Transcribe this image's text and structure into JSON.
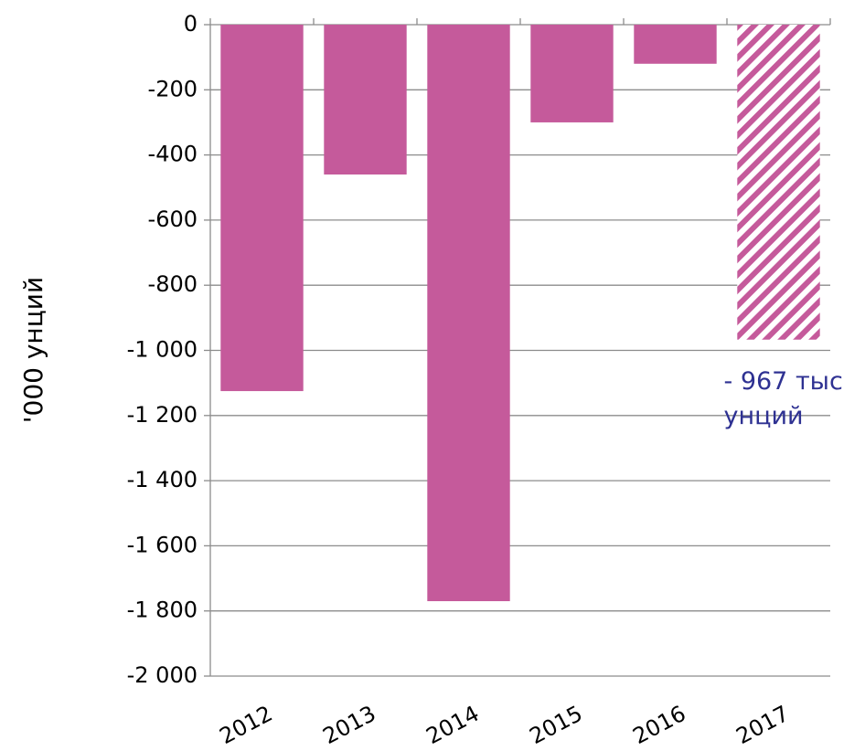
{
  "chart_data": {
    "type": "bar",
    "y_label": "'000  унций",
    "categories": [
      "2012",
      "2013",
      "2014",
      "2015",
      "2016",
      "2017"
    ],
    "values": [
      -1125,
      -460,
      -1770,
      -300,
      -120,
      -967
    ],
    "hatched": [
      false,
      false,
      false,
      false,
      false,
      true
    ],
    "color": "#c55a9b",
    "annotation": [
      "- 967 тыс",
      "унций"
    ],
    "annotation_color": "#2e3192",
    "ylim": [
      -2000,
      0
    ],
    "yticks": [
      0,
      -200,
      -400,
      -600,
      -800,
      {
        "value": -1000,
        "label": "-1 000"
      },
      {
        "value": -1200,
        "label": "-1 200"
      },
      {
        "value": -1400,
        "label": "-1 400"
      },
      {
        "value": -1600,
        "label": "-1 600"
      },
      {
        "value": -1800,
        "label": "-1 800"
      },
      {
        "value": -2000,
        "label": "-2 000"
      }
    ],
    "grid": true
  }
}
